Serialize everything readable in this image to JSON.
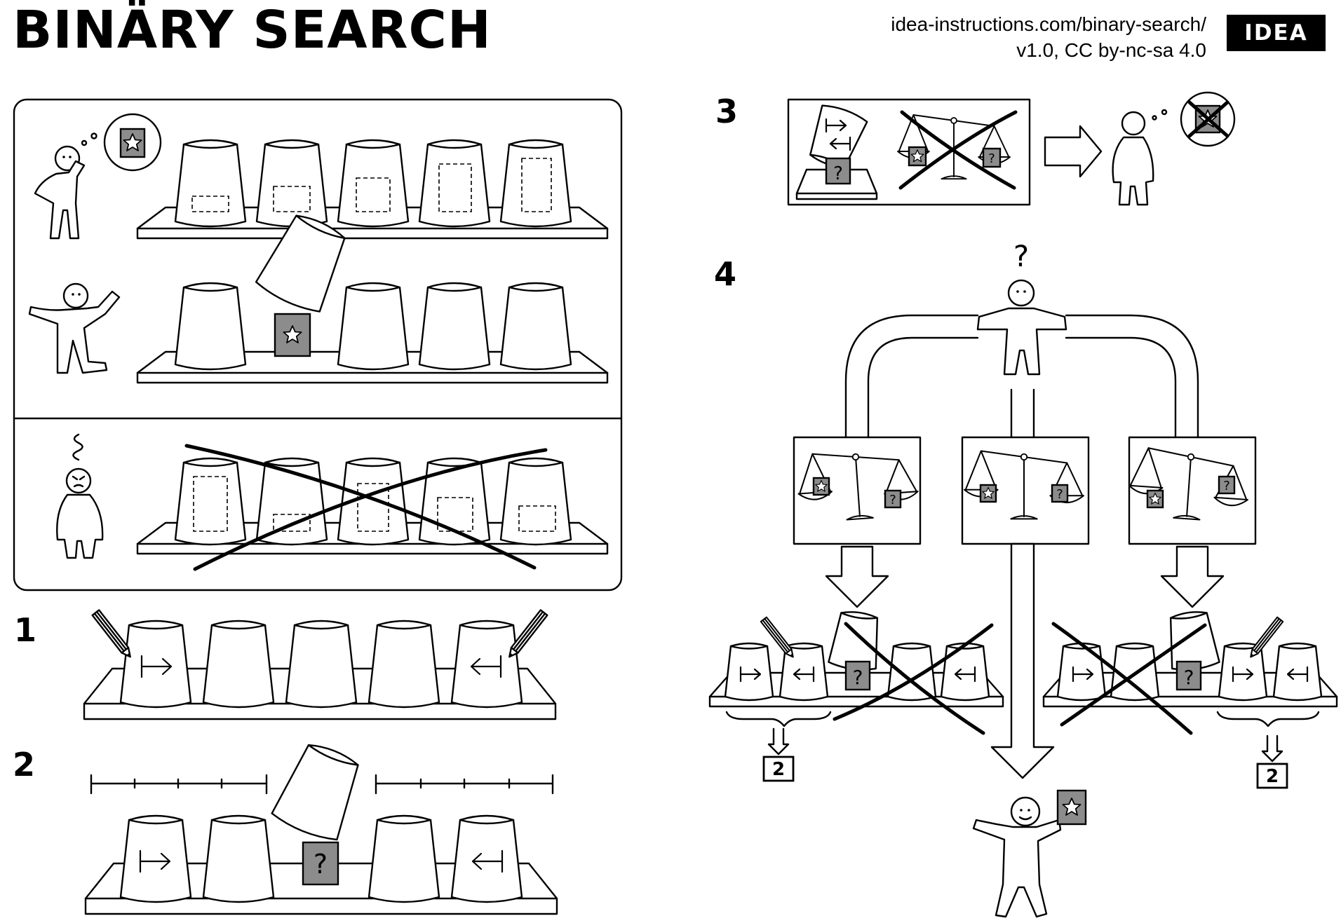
{
  "header": {
    "title": "BINÄRY SEARCH",
    "url_line1": "idea-instructions.com/binary-search/",
    "url_line2": "v1.0, CC by-nc-sa 4.0",
    "logo": "IDEA"
  },
  "steps": {
    "step1": "1",
    "step2": "2",
    "step3": "3",
    "step4": "4"
  },
  "glyphs": {
    "question": "?",
    "goto_step": "2"
  },
  "icons": [
    "person-figure-icon",
    "cup-icon",
    "star-card-icon",
    "question-card-icon",
    "balance-scale-icon",
    "pencil-icon",
    "arrow-icon",
    "thought-bubble-icon"
  ],
  "colors": {
    "ink": "#000000",
    "card": "#8c8c8c",
    "paper": "#ffffff"
  }
}
